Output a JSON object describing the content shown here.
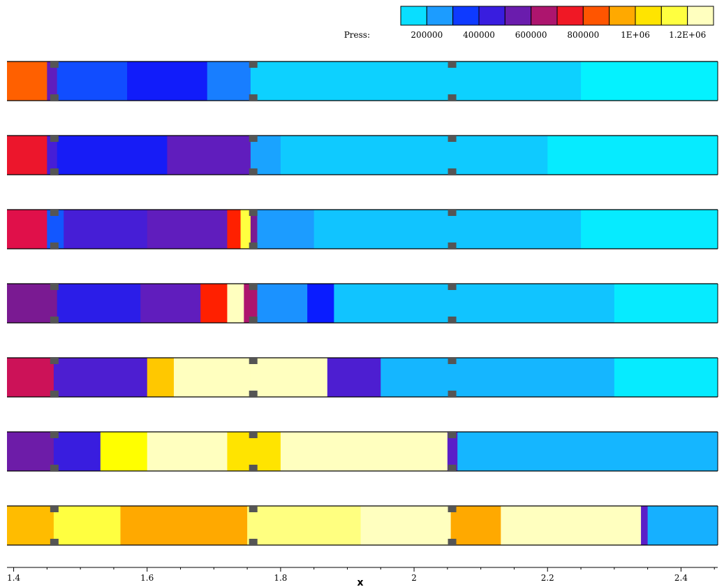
{
  "chart_data": {
    "type": "heatmap",
    "legend_title": "Press:",
    "legend_placement": "top-right",
    "legend_ticks": [
      "200000",
      "400000",
      "600000",
      "800000",
      "1E+06",
      "1.2E+06"
    ],
    "legend_range": [
      100000,
      1300000
    ],
    "colorscale": [
      {
        "v": 100000,
        "c": "#00ffff"
      },
      {
        "v": 250000,
        "c": "#1c9cff"
      },
      {
        "v": 380000,
        "c": "#0a1cff"
      },
      {
        "v": 500000,
        "c": "#5a1ec8"
      },
      {
        "v": 600000,
        "c": "#7a1a92"
      },
      {
        "v": 700000,
        "c": "#e0104a"
      },
      {
        "v": 800000,
        "c": "#ff2000"
      },
      {
        "v": 900000,
        "c": "#ff8a00"
      },
      {
        "v": 1000000,
        "c": "#ffc800"
      },
      {
        "v": 1100000,
        "c": "#ffff00"
      },
      {
        "v": 1300000,
        "c": "#ffffff"
      }
    ],
    "xlabel": "x",
    "xlim": [
      1.39,
      2.455
    ],
    "xticks": [
      {
        "value": 1.4,
        "label": "1.4"
      },
      {
        "value": 1.6,
        "label": "1.6"
      },
      {
        "value": 1.8,
        "label": "1.8"
      },
      {
        "value": 2.0,
        "label": "2"
      },
      {
        "value": 2.2,
        "label": "2.2"
      },
      {
        "value": 2.4,
        "label": "2.4"
      }
    ],
    "supports_x": [
      1.461,
      1.759,
      2.057
    ],
    "panels": [
      {
        "regions": [
          {
            "x0": 1.39,
            "x1": 1.45,
            "p": 860000
          },
          {
            "x0": 1.45,
            "x1": 1.465,
            "p": 520000
          },
          {
            "x0": 1.465,
            "x1": 1.57,
            "p": 330000
          },
          {
            "x0": 1.57,
            "x1": 1.69,
            "p": 390000
          },
          {
            "x0": 1.69,
            "x1": 1.755,
            "p": 280000
          },
          {
            "x0": 1.755,
            "x1": 2.25,
            "p": 170000
          },
          {
            "x0": 2.25,
            "x1": 2.455,
            "p": 120000
          }
        ]
      },
      {
        "regions": [
          {
            "x0": 1.39,
            "x1": 1.45,
            "p": 740000
          },
          {
            "x0": 1.45,
            "x1": 1.465,
            "p": 470000
          },
          {
            "x0": 1.465,
            "x1": 1.63,
            "p": 400000
          },
          {
            "x0": 1.63,
            "x1": 1.755,
            "p": 520000
          },
          {
            "x0": 1.755,
            "x1": 1.8,
            "p": 240000
          },
          {
            "x0": 1.8,
            "x1": 2.2,
            "p": 180000
          },
          {
            "x0": 2.2,
            "x1": 2.455,
            "p": 130000
          }
        ]
      },
      {
        "regions": [
          {
            "x0": 1.39,
            "x1": 1.45,
            "p": 700000
          },
          {
            "x0": 1.45,
            "x1": 1.475,
            "p": 320000
          },
          {
            "x0": 1.475,
            "x1": 1.6,
            "p": 470000
          },
          {
            "x0": 1.6,
            "x1": 1.72,
            "p": 520000
          },
          {
            "x0": 1.72,
            "x1": 1.74,
            "p": 800000
          },
          {
            "x0": 1.74,
            "x1": 1.755,
            "p": 1150000
          },
          {
            "x0": 1.755,
            "x1": 1.765,
            "p": 600000
          },
          {
            "x0": 1.765,
            "x1": 1.85,
            "p": 250000
          },
          {
            "x0": 1.85,
            "x1": 2.25,
            "p": 190000
          },
          {
            "x0": 2.25,
            "x1": 2.455,
            "p": 130000
          }
        ]
      },
      {
        "regions": [
          {
            "x0": 1.39,
            "x1": 1.465,
            "p": 600000
          },
          {
            "x0": 1.465,
            "x1": 1.59,
            "p": 430000
          },
          {
            "x0": 1.59,
            "x1": 1.68,
            "p": 520000
          },
          {
            "x0": 1.68,
            "x1": 1.72,
            "p": 800000
          },
          {
            "x0": 1.72,
            "x1": 1.745,
            "p": 1250000
          },
          {
            "x0": 1.745,
            "x1": 1.765,
            "p": 650000
          },
          {
            "x0": 1.765,
            "x1": 1.84,
            "p": 260000
          },
          {
            "x0": 1.84,
            "x1": 1.88,
            "p": 380000
          },
          {
            "x0": 1.88,
            "x1": 2.3,
            "p": 190000
          },
          {
            "x0": 2.3,
            "x1": 2.455,
            "p": 130000
          }
        ]
      },
      {
        "regions": [
          {
            "x0": 1.39,
            "x1": 1.46,
            "p": 680000
          },
          {
            "x0": 1.46,
            "x1": 1.6,
            "p": 480000
          },
          {
            "x0": 1.6,
            "x1": 1.64,
            "p": 1000000
          },
          {
            "x0": 1.64,
            "x1": 1.755,
            "p": 1250000
          },
          {
            "x0": 1.755,
            "x1": 1.87,
            "p": 1250000
          },
          {
            "x0": 1.87,
            "x1": 1.95,
            "p": 480000
          },
          {
            "x0": 1.95,
            "x1": 2.3,
            "p": 210000
          },
          {
            "x0": 2.3,
            "x1": 2.455,
            "p": 130000
          }
        ]
      },
      {
        "regions": [
          {
            "x0": 1.39,
            "x1": 1.46,
            "p": 560000
          },
          {
            "x0": 1.46,
            "x1": 1.53,
            "p": 450000
          },
          {
            "x0": 1.53,
            "x1": 1.6,
            "p": 1100000
          },
          {
            "x0": 1.6,
            "x1": 1.72,
            "p": 1250000
          },
          {
            "x0": 1.72,
            "x1": 1.8,
            "p": 1050000
          },
          {
            "x0": 1.8,
            "x1": 2.05,
            "p": 1250000
          },
          {
            "x0": 2.05,
            "x1": 2.065,
            "p": 500000
          },
          {
            "x0": 2.065,
            "x1": 2.455,
            "p": 210000
          }
        ]
      },
      {
        "regions": [
          {
            "x0": 1.39,
            "x1": 1.46,
            "p": 980000
          },
          {
            "x0": 1.46,
            "x1": 1.56,
            "p": 1150000
          },
          {
            "x0": 1.56,
            "x1": 1.75,
            "p": 950000
          },
          {
            "x0": 1.75,
            "x1": 1.92,
            "p": 1200000
          },
          {
            "x0": 1.92,
            "x1": 2.055,
            "p": 1250000
          },
          {
            "x0": 2.055,
            "x1": 2.13,
            "p": 950000
          },
          {
            "x0": 2.13,
            "x1": 2.34,
            "p": 1250000
          },
          {
            "x0": 2.34,
            "x1": 2.35,
            "p": 500000
          },
          {
            "x0": 2.35,
            "x1": 2.455,
            "p": 220000
          }
        ]
      }
    ]
  }
}
